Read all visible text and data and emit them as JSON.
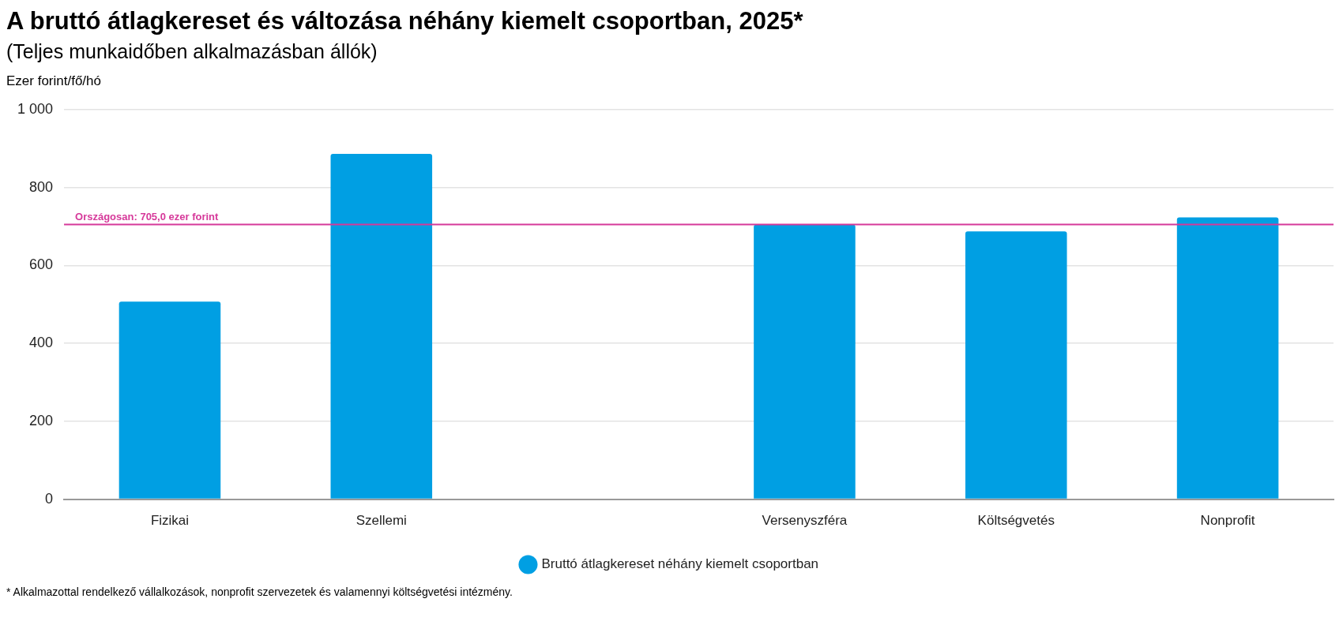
{
  "chart_data": {
    "type": "bar",
    "title": "A bruttó átlagkereset és változása néhány kiemelt csoportban, 2025*",
    "subtitle": "(Teljes munkaidőben alkalmazásban állók)",
    "ylabel": "Ezer forint/fő/hó",
    "categories": [
      "Fizikai",
      "Szellemi",
      null,
      "Versenyszféra",
      "Költségvetés",
      "Nonprofit"
    ],
    "series": [
      {
        "name": "Bruttó átlagkereset néhány kiemelt csoportban",
        "color": "#009fe3",
        "values": [
          507,
          886,
          null,
          705,
          687,
          723
        ]
      }
    ],
    "ylim": [
      0,
      1000
    ],
    "yticks": [
      0,
      {
        "value": 200,
        "label": "200"
      },
      400,
      600,
      800,
      {
        "value": 1000,
        "label": "1 000"
      }
    ],
    "grid": "y",
    "legend": "bottom",
    "ref_lines": [
      {
        "axis": "y",
        "value": 705,
        "label": "Országosan: 705,0 ezer forint",
        "color": "#d6399a"
      }
    ],
    "annotations": [
      "* Alkalmazottal rendelkező vállalkozások, nonprofit szervezetek és valamennyi költségvetési intézmény."
    ]
  }
}
